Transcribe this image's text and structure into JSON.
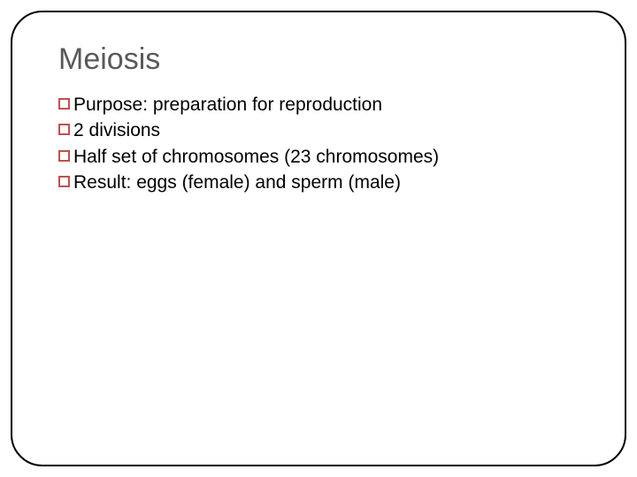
{
  "slide": {
    "title": "Meiosis",
    "title_color": "#595959",
    "title_fontsize": 34,
    "bullets": [
      {
        "text": "Purpose: preparation for reproduction",
        "indent": 0
      },
      {
        "text": " 2 divisions",
        "indent": 0
      },
      {
        "text": "Half set of chromosomes (23 chromosomes)",
        "indent": 0
      },
      {
        "text": "Result: eggs (female) and sperm (male)",
        "indent": 0
      }
    ],
    "bullet_marker_color": "#c0504d",
    "bullet_text_color": "#000000",
    "bullet_fontsize": 21,
    "frame_border_color": "#000000",
    "frame_border_radius": 36,
    "background_color": "#ffffff"
  }
}
